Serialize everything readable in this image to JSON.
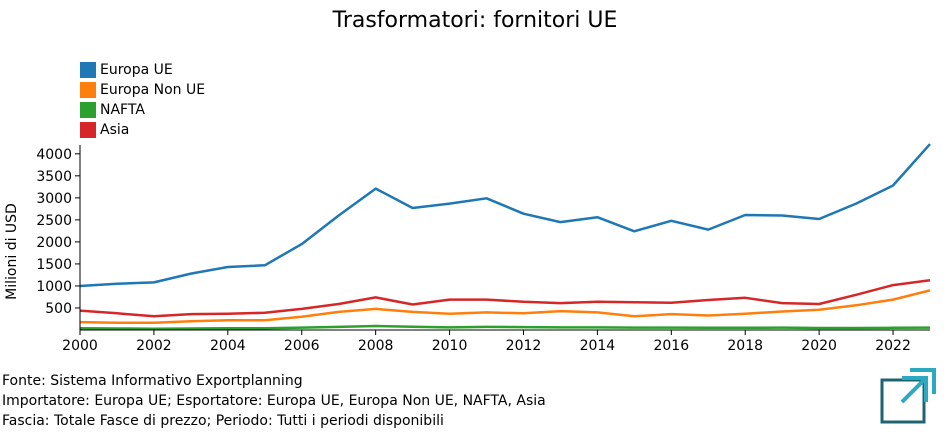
{
  "chart_data": {
    "type": "line",
    "title": "Trasformatori: fornitori UE",
    "xlabel": "",
    "ylabel": "Milioni di USD",
    "x": [
      2000,
      2001,
      2002,
      2003,
      2004,
      2005,
      2006,
      2007,
      2008,
      2009,
      2010,
      2011,
      2012,
      2013,
      2014,
      2015,
      2016,
      2017,
      2018,
      2019,
      2020,
      2021,
      2022,
      2023
    ],
    "xticks": [
      2000,
      2002,
      2004,
      2006,
      2008,
      2010,
      2012,
      2014,
      2016,
      2018,
      2020,
      2022
    ],
    "yticks": [
      500,
      1000,
      1500,
      2000,
      2500,
      3000,
      3500,
      4000
    ],
    "xlim": [
      2000,
      2023
    ],
    "ylim": [
      0,
      4200
    ],
    "legend_position": "top-left",
    "grid": false,
    "series": [
      {
        "name": "Europa UE",
        "color": "#1f77b4",
        "values": [
          1000,
          1050,
          1080,
          1280,
          1430,
          1470,
          1950,
          2600,
          3210,
          2770,
          2870,
          2990,
          2640,
          2450,
          2560,
          2240,
          2480,
          2280,
          2610,
          2600,
          2520,
          2870,
          3280,
          4220
        ]
      },
      {
        "name": "Europa Non UE",
        "color": "#ff7f0e",
        "values": [
          180,
          165,
          165,
          200,
          220,
          220,
          300,
          410,
          480,
          410,
          370,
          400,
          380,
          430,
          400,
          310,
          360,
          330,
          370,
          420,
          460,
          560,
          690,
          900
        ]
      },
      {
        "name": "NAFTA",
        "color": "#2ca02c",
        "values": [
          40,
          35,
          30,
          35,
          40,
          40,
          55,
          70,
          90,
          75,
          60,
          70,
          65,
          60,
          60,
          55,
          55,
          50,
          50,
          55,
          45,
          45,
          50,
          55
        ]
      },
      {
        "name": "Asia",
        "color": "#d62728",
        "values": [
          440,
          380,
          310,
          360,
          370,
          390,
          480,
          590,
          740,
          580,
          690,
          690,
          640,
          610,
          640,
          630,
          620,
          680,
          730,
          610,
          590,
          800,
          1020,
          1130
        ]
      }
    ]
  },
  "footer": {
    "line1": "Fonte: Sistema Informativo Exportplanning",
    "line2": "Importatore: Europa UE; Esportatore: Europa UE, Europa Non UE, NAFTA, Asia",
    "line3": "Fascia: Totale Fasce di prezzo; Periodo: Tutti i periodi disponibili"
  },
  "logo": {
    "icon": "exportplanning-logo-icon",
    "colors": [
      "#1d6472",
      "#2aa9c0"
    ]
  }
}
